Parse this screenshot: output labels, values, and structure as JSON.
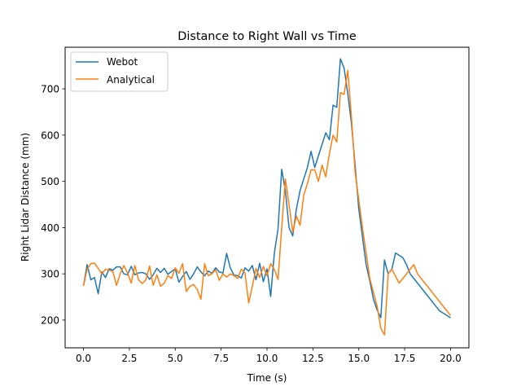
{
  "chart_data": {
    "type": "line",
    "title": "Distance to Right Wall vs Time",
    "xlabel": "Time (s)",
    "ylabel": "Right Lidar Distance (mm)",
    "xlim": [
      -1.0,
      21.0
    ],
    "ylim": [
      140,
      790
    ],
    "xticks": [
      0.0,
      2.5,
      5.0,
      7.5,
      10.0,
      12.5,
      15.0,
      17.5,
      20.0
    ],
    "xtick_labels": [
      "0.0",
      "2.5",
      "5.0",
      "7.5",
      "10.0",
      "12.5",
      "15.0",
      "17.5",
      "20.0"
    ],
    "yticks": [
      200,
      300,
      400,
      500,
      600,
      700
    ],
    "ytick_labels": [
      "200",
      "300",
      "400",
      "500",
      "600",
      "700"
    ],
    "grid": false,
    "legend_position": "top-left",
    "x": [
      0.0,
      0.2,
      0.4,
      0.6,
      0.8,
      1.0,
      1.2,
      1.4,
      1.6,
      1.8,
      2.0,
      2.2,
      2.4,
      2.6,
      2.8,
      3.0,
      3.2,
      3.4,
      3.6,
      3.8,
      4.0,
      4.2,
      4.4,
      4.6,
      4.8,
      5.0,
      5.2,
      5.4,
      5.6,
      5.8,
      6.0,
      6.2,
      6.4,
      6.6,
      6.8,
      7.0,
      7.2,
      7.4,
      7.6,
      7.8,
      8.0,
      8.2,
      8.4,
      8.6,
      8.8,
      9.0,
      9.2,
      9.4,
      9.6,
      9.8,
      10.0,
      10.2,
      10.4,
      10.6,
      10.8,
      11.0,
      11.2,
      11.4,
      11.6,
      11.8,
      12.0,
      12.2,
      12.4,
      12.6,
      12.8,
      13.0,
      13.2,
      13.4,
      13.6,
      13.8,
      14.0,
      14.2,
      14.4,
      14.6,
      14.8,
      15.0,
      15.2,
      15.4,
      15.6,
      15.8,
      16.0,
      16.2,
      16.4,
      16.6,
      16.8,
      17.0,
      17.2,
      17.4,
      17.6,
      17.8,
      18.0,
      18.2,
      18.4,
      18.6,
      18.8,
      19.0,
      19.2,
      19.4,
      19.6,
      19.8,
      20.0
    ],
    "series": [
      {
        "name": "Webot",
        "color": "#1f77b4",
        "values": [
          274,
          320,
          287,
          292,
          257,
          304,
          292,
          311,
          308,
          315,
          315,
          300,
          298,
          316,
          298,
          302,
          303,
          300,
          288,
          298,
          312,
          303,
          312,
          299,
          305,
          311,
          282,
          294,
          305,
          288,
          300,
          315,
          304,
          296,
          306,
          301,
          313,
          304,
          302,
          344,
          313,
          297,
          296,
          291,
          313,
          306,
          318,
          287,
          323,
          283,
          311,
          251,
          345,
          397,
          526,
          480,
          400,
          382,
          440,
          480,
          505,
          530,
          565,
          530,
          555,
          580,
          605,
          590,
          665,
          660,
          765,
          745,
          690,
          625,
          535,
          440,
          380,
          320,
          285,
          245,
          222,
          205,
          330,
          300,
          310,
          345,
          340,
          335,
          320,
          300,
          290,
          280,
          270,
          260,
          250,
          240,
          230,
          220,
          215,
          210,
          205
        ]
      },
      {
        "name": "Analytical",
        "color": "#ff7f0e",
        "values": [
          274,
          310,
          322,
          323,
          312,
          300,
          310,
          308,
          305,
          275,
          300,
          318,
          302,
          280,
          318,
          287,
          279,
          287,
          317,
          275,
          298,
          273,
          280,
          296,
          290,
          313,
          301,
          322,
          262,
          273,
          277,
          266,
          245,
          322,
          296,
          300,
          309,
          286,
          300,
          293,
          300,
          296,
          290,
          310,
          302,
          237,
          273,
          312,
          292,
          316,
          296,
          322,
          309,
          288,
          400,
          505,
          450,
          390,
          425,
          405,
          470,
          495,
          525,
          525,
          500,
          535,
          510,
          560,
          600,
          585,
          692,
          688,
          740,
          640,
          520,
          460,
          400,
          345,
          290,
          260,
          230,
          182,
          168,
          300,
          310,
          295,
          280,
          290,
          300,
          310,
          320,
          300,
          290,
          280,
          270,
          260,
          250,
          240,
          230,
          220,
          210
        ]
      }
    ]
  }
}
